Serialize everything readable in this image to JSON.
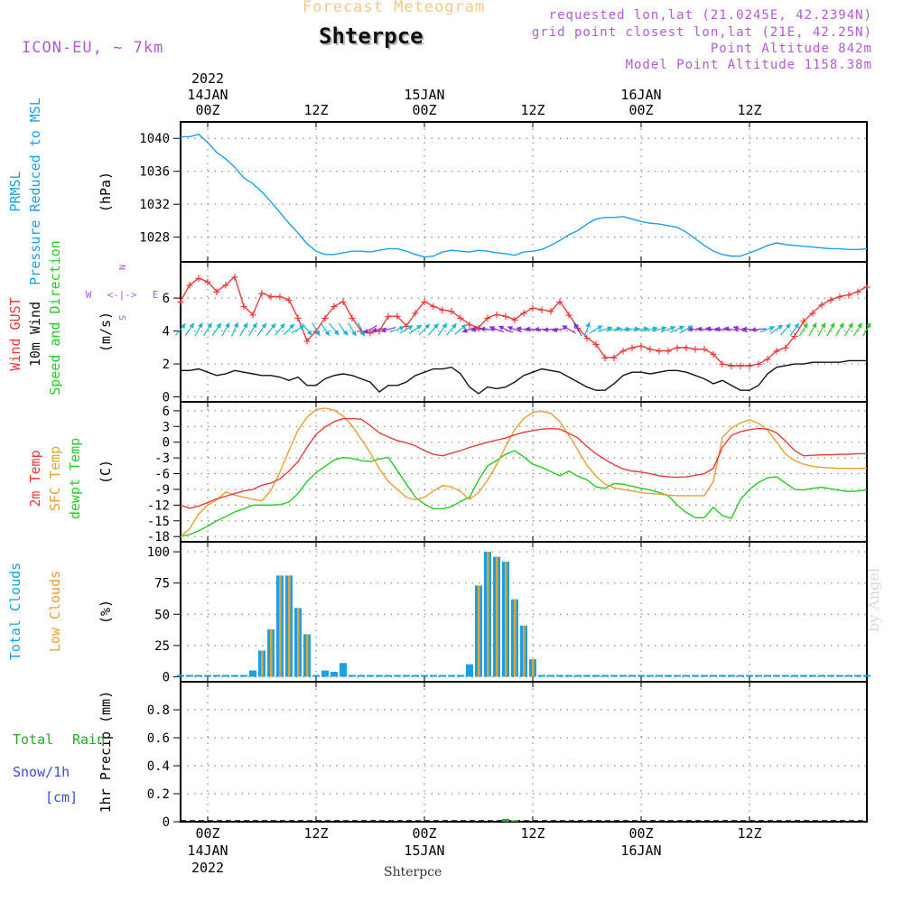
{
  "header": {
    "title": "Forecast Meteogram",
    "location": "Shterpce",
    "model": "ICON-EU, ~ 7km",
    "requested": "requested lon,lat (21.0245E, 42.2394N)",
    "grid_point": "grid point closest lon,lat (21E, 42.25N)",
    "point_altitude": "Point Altitude 842m",
    "model_point_altitude": "Model Point Altitude 1158.38m"
  },
  "footer": {
    "location": "Shterpce"
  },
  "watermark": "by Angel",
  "colors": {
    "pressure": "#1aa0e6",
    "gust": "#e83a3a",
    "wind": "#111111",
    "arrow_cyan": "#18b6d0",
    "arrow_blue": "#3a4ae8",
    "arrow_purple": "#8a2ad8",
    "arrow_green": "#2ecc2e",
    "temp2m": "#e83a3a",
    "sfctemp": "#e6a030",
    "dewpt": "#22cc22",
    "total_clouds": "#1aa0e6",
    "low_clouds": "#e6a030",
    "rain": "#22aa22",
    "snow": "#3a4ae8",
    "compass": "#b05ad8",
    "grid": "#888888"
  },
  "chart_data": {
    "type": "line",
    "x_unit": "hours since 2022-01-13 21Z",
    "x_range": [
      0,
      76
    ],
    "time_axis": {
      "ticks": [
        {
          "h": 3,
          "label": "00Z",
          "date": "14JAN",
          "year": "2022"
        },
        {
          "h": 15,
          "label": "12Z"
        },
        {
          "h": 27,
          "label": "00Z",
          "date": "15JAN"
        },
        {
          "h": 39,
          "label": "12Z"
        },
        {
          "h": 51,
          "label": "00Z",
          "date": "16JAN"
        },
        {
          "h": 63,
          "label": "12Z"
        }
      ]
    },
    "panels": [
      {
        "id": "pressure",
        "labels": [
          "PRMSL",
          "Pressure Reduced to MSL"
        ],
        "unit": "(hPa)",
        "ylim": [
          1025,
          1042
        ],
        "yticks": [
          "1040",
          "1036",
          "1032",
          "1028"
        ],
        "series": [
          {
            "name": "PRMSL",
            "values": [
              1040.2,
              1040.2,
              1040.5,
              1039.5,
              1038.3,
              1037.5,
              1036.5,
              1035.2,
              1034.5,
              1033.5,
              1032.3,
              1031,
              1029.7,
              1028.5,
              1027.2,
              1026.3,
              1025.9,
              1025.9,
              1026.1,
              1026.3,
              1026.3,
              1026.2,
              1026.4,
              1026.6,
              1026.6,
              1026.3,
              1025.9,
              1025.6,
              1025.7,
              1026.2,
              1026.4,
              1026.3,
              1026.2,
              1026.4,
              1026.3,
              1026.1,
              1026,
              1025.8,
              1026.2,
              1026.3,
              1026.5,
              1027,
              1027.6,
              1028.3,
              1028.8,
              1029.6,
              1030.2,
              1030.4,
              1030.4,
              1030.5,
              1030.2,
              1029.9,
              1029.7,
              1029.6,
              1029.4,
              1029.2,
              1028.6,
              1027.8,
              1027,
              1026.3,
              1025.9,
              1025.7,
              1025.7,
              1026.1,
              1026.5,
              1027,
              1027.3,
              1027.1,
              1027,
              1026.9,
              1026.8,
              1026.7,
              1026.6,
              1026.6,
              1026.5,
              1026.5,
              1026.6
            ]
          }
        ]
      },
      {
        "id": "wind",
        "labels": [
          "Wind GUST",
          "10m Wind",
          "Speed and Direction"
        ],
        "unit": "(m/s)",
        "ylim": [
          -0.3,
          8.2
        ],
        "yticks": [
          "6",
          "4",
          "2",
          "0"
        ],
        "compass": {
          "n": "N",
          "s": "S",
          "w": "W",
          "e": "E",
          "arrow": "<-|->"
        },
        "series": [
          {
            "name": "Wind GUST",
            "values": [
              5.8,
              6.8,
              7.2,
              7,
              6.4,
              6.8,
              7.3,
              5.5,
              5,
              6.3,
              6.1,
              6.1,
              5.9,
              4.8,
              3.4,
              4,
              4.8,
              5.5,
              5.8,
              4.8,
              4,
              3.9,
              4,
              4.9,
              4.9,
              4.3,
              5.1,
              5.8,
              5.5,
              5.3,
              5.2,
              4.8,
              4.4,
              4.2,
              4.8,
              5,
              4.9,
              4.7,
              5.1,
              5.4,
              5.3,
              5.2,
              5.8,
              5,
              4.2,
              3.6,
              3.2,
              2.4,
              2.4,
              2.8,
              3,
              3.1,
              2.9,
              2.8,
              2.8,
              3,
              3,
              2.9,
              2.9,
              2.6,
              2,
              1.9,
              1.9,
              1.9,
              2,
              2.3,
              2.8,
              3,
              3.7,
              4.6,
              5.1,
              5.6,
              5.9,
              6.1,
              6.2,
              6.4,
              6.7
            ]
          },
          {
            "name": "10m Wind",
            "values": [
              1.6,
              1.6,
              1.7,
              1.5,
              1.3,
              1.4,
              1.6,
              1.5,
              1.4,
              1.3,
              1.3,
              1.2,
              1,
              1.2,
              0.7,
              0.7,
              1.1,
              1.3,
              1.4,
              1.3,
              1.1,
              0.9,
              0.3,
              0.7,
              0.7,
              0.9,
              1.3,
              1.5,
              1.7,
              1.7,
              1.8,
              1.4,
              0.6,
              0.2,
              0.6,
              0.5,
              0.6,
              0.9,
              1.3,
              1.5,
              1.7,
              1.6,
              1.5,
              1.2,
              0.9,
              0.6,
              0.4,
              0.4,
              0.8,
              1.3,
              1.5,
              1.5,
              1.4,
              1.5,
              1.6,
              1.6,
              1.5,
              1.3,
              1.1,
              0.8,
              1,
              0.7,
              0.4,
              0.4,
              0.7,
              1.4,
              1.8,
              1.9,
              2,
              2,
              2.1,
              2.1,
              2.1,
              2.1,
              2.2,
              2.2,
              2.2
            ]
          },
          {
            "name": "Direction",
            "values": [
              220,
              215,
              210,
              212,
              215,
              210,
              205,
              210,
              212,
              215,
              218,
              220,
              225,
              240,
              320,
              330,
              325,
              320,
              322,
              330,
              335,
              60,
              80,
              75,
              250,
              240,
              235,
              225,
              220,
              215,
              220,
              230,
              70,
              85,
              95,
              110,
              115,
              110,
              100,
              95,
              90,
              85,
              80,
              120,
              150,
              200,
              240,
              255,
              260,
              265,
              262,
              260,
              258,
              255,
              250,
              245,
              240,
              90,
              95,
              100,
              95,
              100,
              110,
              95,
              85,
              250,
              235,
              220,
              215,
              212,
              210,
              208,
              210,
              212,
              212,
              212,
              210
            ]
          }
        ]
      },
      {
        "id": "temperature",
        "labels": [
          "2m Temp",
          "SFC Temp",
          "dewpt Temp"
        ],
        "unit": "(C)",
        "ylim": [
          -19,
          7.7
        ],
        "yticks": [
          "6",
          "3",
          "0",
          "-3",
          "-6",
          "-9",
          "-12",
          "-15",
          "-18"
        ],
        "series": [
          {
            "name": "2m Temp",
            "values": [
              -12,
              -12.6,
              -12.2,
              -11.5,
              -10.8,
              -10.3,
              -9.8,
              -9.3,
              -9,
              -8.2,
              -7.8,
              -7,
              -5.5,
              -3.7,
              -1,
              1.5,
              2.9,
              3.9,
              4.5,
              4.5,
              4.4,
              3.2,
              1.8,
              1,
              0.3,
              -0.1,
              -0.7,
              -1.6,
              -2.3,
              -2.6,
              -2.1,
              -1.6,
              -1,
              -0.5,
              0,
              0.4,
              0.8,
              1.4,
              1.9,
              2.2,
              2.5,
              2.6,
              2.5,
              1.7,
              0.8,
              -0.8,
              -2.2,
              -3.3,
              -4.3,
              -5.1,
              -5.5,
              -5.7,
              -6,
              -6.4,
              -6.6,
              -6.7,
              -6.6,
              -6.3,
              -6,
              -5,
              -1,
              1.3,
              2,
              2.4,
              2.6,
              2.5,
              1.8,
              0.2,
              -1.6,
              -2.6,
              -2.5,
              -2.4,
              -2.4,
              -2.3,
              -2.3,
              -2.2,
              -2.2
            ]
          },
          {
            "name": "SFC Temp",
            "values": [
              -18,
              -16.5,
              -13.7,
              -12,
              -11,
              -9.5,
              -10.1,
              -10.5,
              -10.9,
              -11.2,
              -9.2,
              -5.7,
              -1.6,
              2.3,
              4.8,
              6.2,
              6.5,
              6.1,
              5,
              3.1,
              0.6,
              -2,
              -5,
              -7.5,
              -9,
              -10.5,
              -11,
              -10.5,
              -9.3,
              -8.3,
              -8.5,
              -9.4,
              -10.9,
              -9.6,
              -7.2,
              -4.3,
              -0.8,
              2.4,
              4.5,
              5.7,
              5.9,
              5.5,
              3.9,
              1.3,
              -1.5,
              -4.4,
              -6.5,
              -8,
              -8.7,
              -9,
              -9.3,
              -9.6,
              -9.8,
              -9.9,
              -10.1,
              -10.2,
              -10.2,
              -10.2,
              -10.2,
              -7.5,
              0.9,
              2.7,
              3.7,
              4.3,
              3.6,
              2.3,
              0,
              -2.3,
              -3.5,
              -4.2,
              -4.6,
              -4.8,
              -4.9,
              -5,
              -5,
              -5,
              -5
            ]
          },
          {
            "name": "dewpt Temp",
            "values": [
              -18,
              -17.6,
              -16.9,
              -16,
              -15,
              -14.2,
              -13.3,
              -12.7,
              -12,
              -12,
              -12,
              -11.9,
              -11.4,
              -9.8,
              -7.5,
              -5.8,
              -4.6,
              -3.4,
              -2.9,
              -3.1,
              -3.5,
              -3.7,
              -3.2,
              -2.9,
              -5.4,
              -8,
              -10.5,
              -11.8,
              -12.7,
              -12.7,
              -12.3,
              -11.3,
              -10.5,
              -7.2,
              -4.5,
              -3.5,
              -2.3,
              -1.6,
              -2.8,
              -4.2,
              -4.8,
              -5.6,
              -6.4,
              -5.5,
              -6.5,
              -7.2,
              -8.5,
              -8.8,
              -7.9,
              -8,
              -8.4,
              -8.8,
              -9.1,
              -9.6,
              -10.2,
              -12,
              -13.4,
              -14.4,
              -14.4,
              -12.4,
              -14,
              -14.5,
              -10.9,
              -9,
              -7.7,
              -6.8,
              -6.6,
              -7.8,
              -9,
              -9.1,
              -8.8,
              -8.6,
              -8.9,
              -9.2,
              -9.4,
              -9.3,
              -9.1
            ]
          }
        ]
      },
      {
        "id": "clouds",
        "labels": [
          "Total Clouds",
          "Low Clouds"
        ],
        "unit": "(%)",
        "ylim": [
          -4,
          108
        ],
        "yticks": [
          "100",
          "75",
          "50",
          "25",
          "0"
        ],
        "series": [
          {
            "name": "Total Clouds",
            "x": [
              0,
              1,
              2,
              3,
              4,
              5,
              6,
              7,
              8,
              9,
              10,
              11,
              12,
              13,
              14,
              15,
              16,
              17,
              18,
              19,
              20,
              21,
              22,
              23,
              24,
              25,
              26,
              27,
              28,
              29,
              30,
              31,
              32,
              33,
              34,
              35,
              36,
              37,
              38,
              39,
              40,
              41,
              42,
              43,
              44,
              45,
              46,
              47,
              48,
              49,
              50,
              51,
              52,
              53,
              54,
              55,
              56,
              57,
              58,
              59,
              60,
              61,
              62,
              63,
              64,
              65,
              66,
              67,
              68,
              69,
              70,
              71,
              72,
              73,
              74,
              75,
              76
            ],
            "values": [
              1,
              0,
              0,
              0,
              0,
              0,
              0,
              0,
              5,
              21,
              38,
              81,
              81,
              55,
              34,
              0,
              5,
              4,
              11,
              1,
              0,
              0,
              0,
              0,
              0,
              0,
              0,
              0,
              0,
              0,
              0,
              0,
              10,
              73,
              100,
              96,
              92,
              62,
              41,
              14,
              0,
              0,
              0,
              0,
              0,
              0,
              0,
              0,
              0,
              0,
              0,
              0,
              0,
              0,
              0,
              0,
              0,
              0,
              0,
              0,
              0,
              0,
              0,
              0,
              0,
              0,
              0,
              0,
              0,
              0,
              0,
              0,
              0,
              0,
              0,
              0,
              0
            ]
          },
          {
            "name": "Low Clouds",
            "values": [
              0,
              0,
              0,
              0,
              0,
              0,
              0,
              0,
              0,
              21,
              38,
              81,
              81,
              55,
              34,
              0,
              0,
              0,
              0,
              0,
              0,
              0,
              0,
              0,
              0,
              0,
              0,
              0,
              0,
              0,
              0,
              0,
              0,
              73,
              100,
              96,
              92,
              62,
              41,
              14,
              0,
              0,
              0,
              0,
              0,
              0,
              0,
              0,
              0,
              0,
              0,
              0,
              0,
              0,
              0,
              0,
              0,
              0,
              0,
              0,
              0,
              0,
              0,
              0,
              0,
              0,
              0,
              0,
              0,
              0,
              0,
              0,
              0,
              0,
              0,
              0,
              0
            ]
          }
        ]
      },
      {
        "id": "precip",
        "labels": [
          "Total",
          "Rain",
          "Snow/1h",
          "[cm]"
        ],
        "unit": "1hr Precip (mm)",
        "ylim": [
          0,
          1.0
        ],
        "yticks": [
          "0.8",
          "0.6",
          "0.4",
          "0.2",
          "0"
        ],
        "series": [
          {
            "name": "Rain",
            "bars": [
              {
                "h": 36,
                "value": 0.02
              },
              {
                "h": 37,
                "value": 0.01
              }
            ]
          }
        ]
      }
    ]
  }
}
